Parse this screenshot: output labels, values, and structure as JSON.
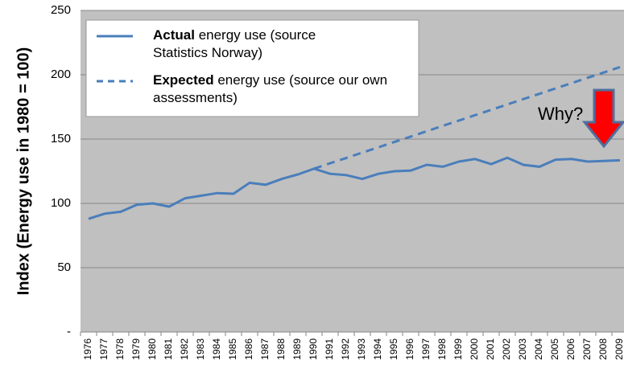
{
  "chart_data": {
    "type": "line",
    "y_label": "Index (Energy use in 1980 = 100)",
    "annotation": "Why?",
    "categories": [
      "1976",
      "1977",
      "1978",
      "1979",
      "1980",
      "1981",
      "1982",
      "1983",
      "1984",
      "1985",
      "1986",
      "1987",
      "1988",
      "1989",
      "1990",
      "1991",
      "1992",
      "1993",
      "1994",
      "1995",
      "1996",
      "1997",
      "1998",
      "1999",
      "2000",
      "2001",
      "2002",
      "2003",
      "2004",
      "2005",
      "2006",
      "2007",
      "2008",
      "2009"
    ],
    "series": [
      {
        "name": "Actual energy use (source Statistics Norway)",
        "color": "#4a7ebb",
        "dashed": false,
        "values": [
          88,
          92,
          93.5,
          99,
          100,
          97.5,
          104,
          106,
          108,
          107.5,
          116,
          114.5,
          119,
          122.5,
          127,
          123,
          122,
          119,
          123,
          125,
          125.5,
          130,
          128.5,
          132.5,
          134.5,
          130.5,
          135.5,
          130,
          128.5,
          134,
          134.5,
          132.5,
          133,
          133.5
        ]
      },
      {
        "name": "Expected energy use (source our own assessments)",
        "color": "#4a7ebb",
        "dashed": true,
        "values": [
          null,
          null,
          null,
          null,
          null,
          null,
          null,
          null,
          null,
          null,
          null,
          null,
          null,
          null,
          127,
          131.2,
          135.3,
          139.5,
          143.6,
          147.8,
          151.9,
          156.1,
          160.3,
          164.4,
          168.6,
          172.7,
          176.9,
          181.1,
          185.2,
          189.4,
          193.5,
          197.7,
          201.8,
          206
        ]
      }
    ],
    "ylim": [
      0,
      250
    ],
    "yticks": [
      {
        "value": 0,
        "label": "-"
      },
      50,
      100,
      150,
      200,
      250
    ],
    "grid": true
  }
}
